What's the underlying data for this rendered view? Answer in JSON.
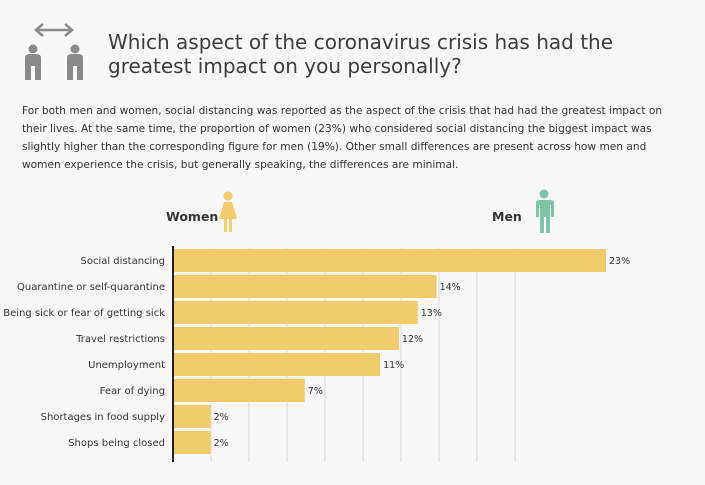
{
  "title": "Which aspect of the coronavirus crisis has had the greatest impact on you personally?",
  "intro": "For both men and women, social distancing was reported as the aspect of the crisis that had had the greatest impact on their lives. At the same time, the proportion of women (23%) who considered social distancing the biggest impact was slightly higher than the corresponding figure for men (19%). Other small differences are present across how men and women experience the crisis, but generally speaking, the differences are minimal.",
  "legend": {
    "women": "Women",
    "men": "Men"
  },
  "colors": {
    "bar": "#f2cb6c",
    "women_icon": "#f2cb6c",
    "men_icon": "#7fc4a4",
    "header_icon": "#8a8a8a",
    "axis": "#222222",
    "grid": "#dddddd"
  },
  "icons": {
    "header": "social-distancing-icon",
    "women": "woman-icon",
    "men": "man-icon"
  },
  "chart_data": {
    "type": "bar",
    "orientation": "horizontal",
    "categories": [
      "Social distancing",
      "Quarantine or self-quarantine",
      "Being sick or fear of getting sick",
      "Travel restrictions",
      "Unemployment",
      "Fear of dying",
      "Shortages in food supply",
      "Shops being closed"
    ],
    "values": [
      23,
      14,
      13,
      12,
      11,
      7,
      2,
      2
    ],
    "value_labels": [
      "23%",
      "14%",
      "13%",
      "12%",
      "11%",
      "7%",
      "2%",
      "2%"
    ],
    "xlim": [
      0,
      23
    ],
    "grid": true
  }
}
